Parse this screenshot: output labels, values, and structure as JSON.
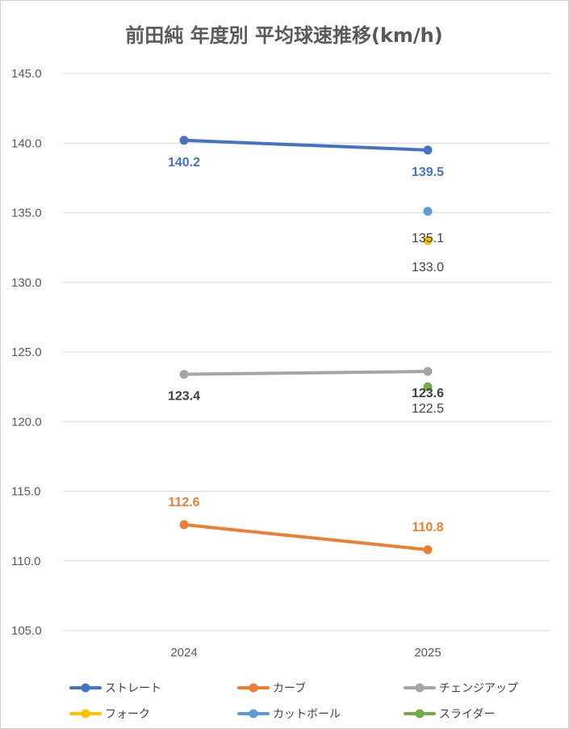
{
  "chart_data": {
    "type": "line",
    "title": "前田純 年度別 平均球速推移(km/h)",
    "x": [
      "2024",
      "2025"
    ],
    "ylim": [
      105,
      145
    ],
    "yticks": [
      "105.0",
      "110.0",
      "115.0",
      "120.0",
      "125.0",
      "130.0",
      "135.0",
      "140.0",
      "145.0"
    ],
    "grid": true,
    "legend_position": "bottom",
    "series": [
      {
        "name": "ストレート",
        "color": "#4472C4",
        "values": [
          140.2,
          139.5
        ],
        "labels": [
          "140.2",
          "139.5"
        ],
        "label_pos": "below"
      },
      {
        "name": "カーブ",
        "color": "#ED7D31",
        "values": [
          112.6,
          110.8
        ],
        "labels": [
          "112.6",
          "110.8"
        ],
        "label_pos": "above"
      },
      {
        "name": "チェンジアップ",
        "color": "#A5A5A5",
        "values": [
          123.4,
          123.6
        ],
        "labels": [
          "123.4",
          "123.6"
        ],
        "label_pos": "below",
        "label_color": "#404040"
      },
      {
        "name": "フォーク",
        "color": "#FFC000",
        "values": [
          null,
          133.0
        ],
        "labels": [
          null,
          "133.0"
        ],
        "label_pos": "below2",
        "label_color": "#404040"
      },
      {
        "name": "カットボール",
        "color": "#5B9BD5",
        "values": [
          null,
          135.1
        ],
        "labels": [
          null,
          "135.1"
        ],
        "label_pos": "below2",
        "label_color": "#404040"
      },
      {
        "name": "スライダー",
        "color": "#70AD47",
        "values": [
          null,
          122.5
        ],
        "labels": [
          null,
          "122.5"
        ],
        "label_pos": "below",
        "label_color": "#404040"
      }
    ]
  }
}
